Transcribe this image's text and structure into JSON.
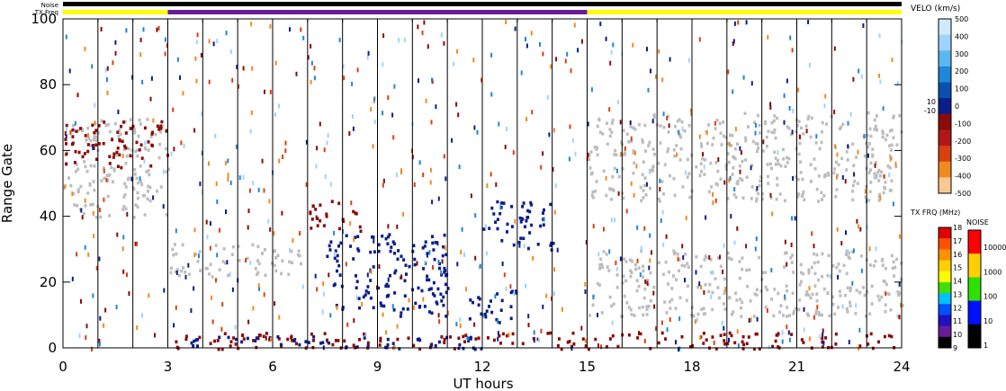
{
  "chart_data": {
    "type": "heatmap",
    "xlabel": "UT hours",
    "ylabel": "Range Gate",
    "xlim": [
      0,
      24
    ],
    "ylim": [
      0,
      100
    ],
    "xticks": [
      0,
      3,
      6,
      9,
      12,
      15,
      18,
      21,
      24
    ],
    "yticks": [
      0,
      20,
      40,
      60,
      80,
      100
    ],
    "header_labels": {
      "noise": "Noise",
      "txfreq": "TX Freq"
    },
    "tx_freq_segments": [
      {
        "start": 0,
        "end": 3,
        "color": "#ffff00"
      },
      {
        "start": 3,
        "end": 15,
        "color": "#6a1b9a"
      },
      {
        "start": 15,
        "end": 24,
        "color": "#ffff00"
      }
    ],
    "velocity_colorbar": {
      "title": "VELO (km/s)",
      "labels": [
        "500",
        "400",
        "300",
        "200",
        "100",
        "0",
        "-100",
        "-200",
        "-300",
        "-400",
        "-500"
      ],
      "near_zero_labels": [
        "10",
        "-10"
      ],
      "colors": [
        "#cfeaff",
        "#9fd3ff",
        "#5bb7f0",
        "#1f86d8",
        "#0a4fb0",
        "#0a1d8a",
        "#8b0a0a",
        "#b01818",
        "#d84010",
        "#f08a20",
        "#f8c890"
      ]
    },
    "tx_freq_colorbar": {
      "title": "TX FRQ (MHz)",
      "labels": [
        "18",
        "17",
        "16",
        "15",
        "14",
        "13",
        "12",
        "11",
        "10",
        "9"
      ],
      "colors": [
        "#e00000",
        "#ff5000",
        "#ff9000",
        "#ffd000",
        "#ffff00",
        "#40e000",
        "#00c0ff",
        "#0050ff",
        "#2010c0",
        "#6a1b9a",
        "#000000"
      ]
    },
    "noise_colorbar": {
      "title": "NOISE",
      "labels": [
        "10000",
        "1000",
        "100",
        "10",
        "1"
      ],
      "colors": [
        "#ff0000",
        "#ffd000",
        "#30e000",
        "#0010ff",
        "#000000"
      ]
    },
    "features": [
      {
        "kind": "ground_scatter",
        "x": [
          0,
          3
        ],
        "y": [
          40,
          70
        ]
      },
      {
        "kind": "ground_scatter",
        "x": [
          3,
          6.8
        ],
        "y": [
          22,
          32
        ]
      },
      {
        "kind": "ground_scatter",
        "x": [
          15,
          24
        ],
        "y": [
          45,
          72
        ]
      },
      {
        "kind": "ground_scatter",
        "x": [
          15,
          24
        ],
        "y": [
          10,
          30
        ]
      },
      {
        "kind": "negative_velocity",
        "x": [
          0,
          3
        ],
        "y": [
          55,
          70
        ]
      },
      {
        "kind": "negative_velocity",
        "x": [
          7,
          8.5
        ],
        "y": [
          35,
          45
        ]
      },
      {
        "kind": "negative_velocity",
        "x": [
          3.2,
          24
        ],
        "y": [
          0,
          5
        ]
      },
      {
        "kind": "positive_velocity",
        "x": [
          7.5,
          11
        ],
        "y": [
          10,
          35
        ]
      },
      {
        "kind": "positive_velocity",
        "x": [
          11.5,
          13
        ],
        "y": [
          8,
          18
        ]
      },
      {
        "kind": "positive_velocity",
        "x": [
          3.5,
          12
        ],
        "y": [
          0,
          4
        ]
      },
      {
        "kind": "positive_velocity",
        "x": [
          12,
          14
        ],
        "y": [
          30,
          45
        ]
      }
    ]
  }
}
